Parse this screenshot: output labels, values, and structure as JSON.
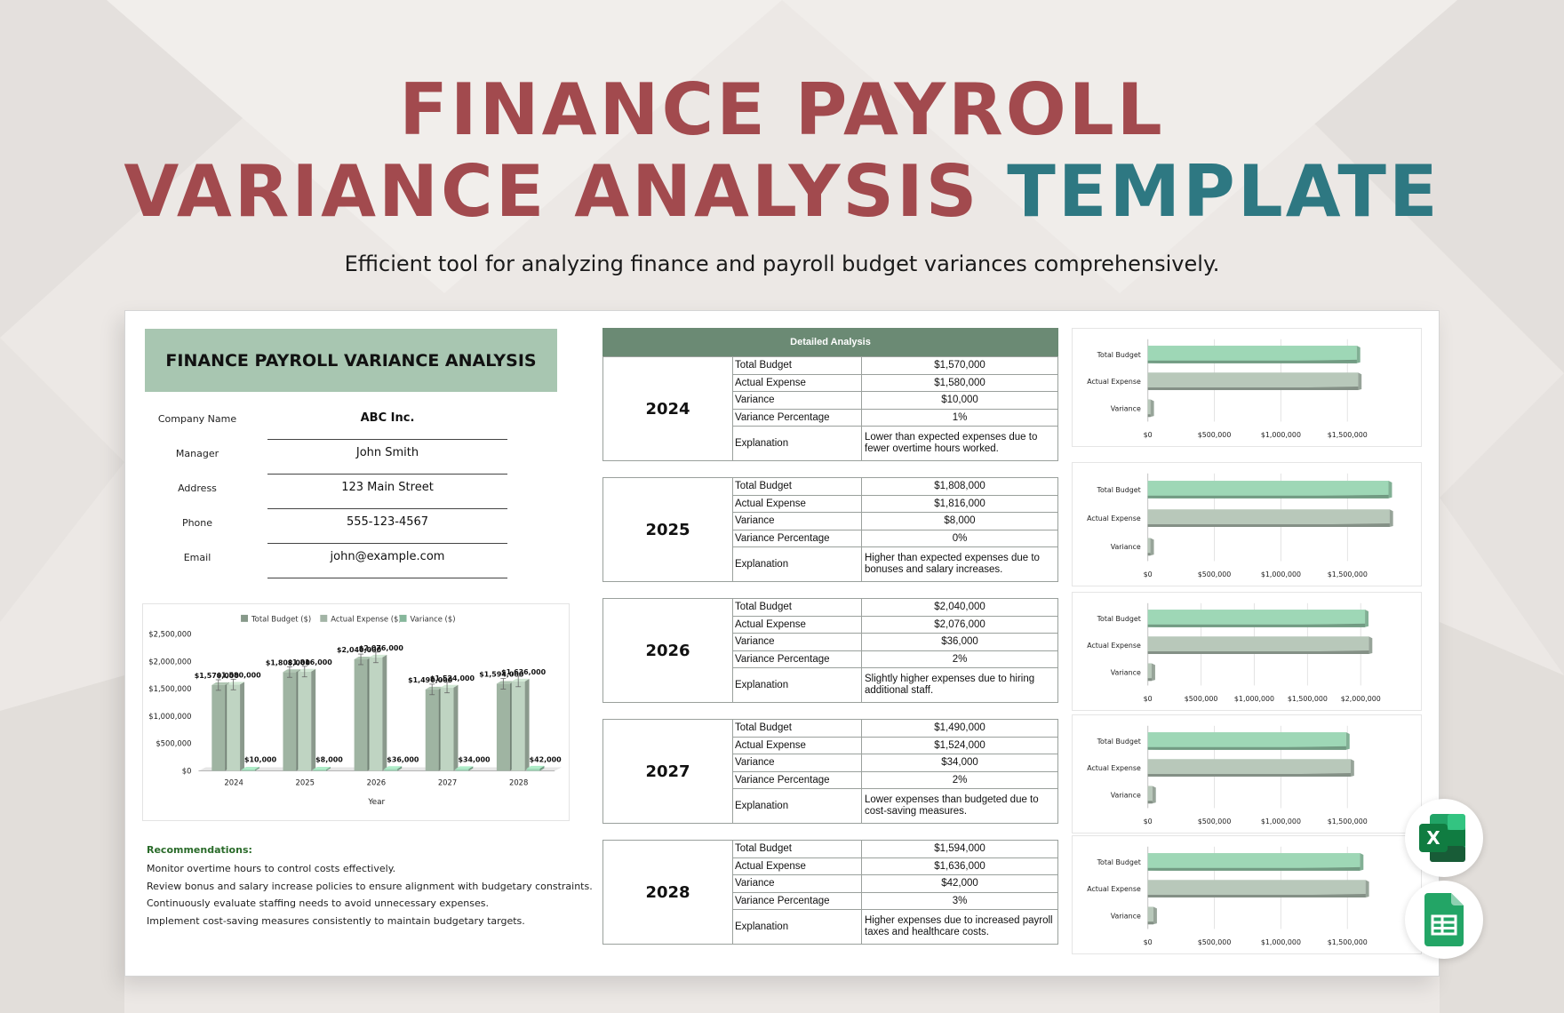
{
  "header": {
    "title_line1": "FINANCE PAYROLL",
    "title_line2a": "VARIANCE ANALYSIS",
    "title_line2b": "TEMPLATE",
    "subtitle": "Efficient tool for analyzing finance and payroll budget variances comprehensively."
  },
  "sheet": {
    "panel_title": "FINANCE PAYROLL VARIANCE ANALYSIS",
    "company_info": [
      {
        "label": "Company Name",
        "value": "ABC Inc."
      },
      {
        "label": "Manager",
        "value": "John Smith"
      },
      {
        "label": "Address",
        "value": "123 Main Street"
      },
      {
        "label": "Phone",
        "value": "555-123-4567"
      },
      {
        "label": "Email",
        "value": "john@example.com"
      }
    ],
    "recommendations": {
      "title": "Recommendations:",
      "items": [
        "Monitor overtime hours to control costs effectively.",
        "Review bonus and salary increase policies to ensure alignment with budgetary constraints.",
        "Continuously evaluate staffing needs to avoid unnecessary expenses.",
        "Implement cost-saving measures consistently to maintain budgetary targets."
      ]
    },
    "detailed_analysis": {
      "header": "Detailed Analysis",
      "metric_labels": [
        "Total Budget",
        "Actual Expense",
        "Variance",
        "Variance Percentage",
        "Explanation"
      ],
      "years": [
        {
          "year": "2024",
          "total_budget": "$1,570,000",
          "actual_expense": "$1,580,000",
          "variance": "$10,000",
          "variance_pct": "1%",
          "explanation": "Lower than expected expenses due to fewer overtime hours worked."
        },
        {
          "year": "2025",
          "total_budget": "$1,808,000",
          "actual_expense": "$1,816,000",
          "variance": "$8,000",
          "variance_pct": "0%",
          "explanation": "Higher than expected expenses due to bonuses and salary increases."
        },
        {
          "year": "2026",
          "total_budget": "$2,040,000",
          "actual_expense": "$2,076,000",
          "variance": "$36,000",
          "variance_pct": "2%",
          "explanation": "Slightly higher expenses due to hiring additional staff."
        },
        {
          "year": "2027",
          "total_budget": "$1,490,000",
          "actual_expense": "$1,524,000",
          "variance": "$34,000",
          "variance_pct": "2%",
          "explanation": "Lower expenses than budgeted due to cost-saving measures."
        },
        {
          "year": "2028",
          "total_budget": "$1,594,000",
          "actual_expense": "$1,636,000",
          "variance": "$42,000",
          "variance_pct": "3%",
          "explanation": "Higher expenses due to increased payroll taxes and healthcare costs."
        }
      ]
    }
  },
  "apps": {
    "excel_letter": "X"
  },
  "chart_data": [
    {
      "type": "bar",
      "categories": [
        "2024",
        "2025",
        "2026",
        "2027",
        "2028"
      ],
      "series": [
        {
          "name": "Total Budget ($)",
          "values": [
            1570000,
            1808000,
            2040000,
            1490000,
            1594000
          ],
          "color": "#9fb4a2"
        },
        {
          "name": "Actual Expense ($)",
          "values": [
            1580000,
            1816000,
            2076000,
            1524000,
            1636000
          ],
          "color": "#bfd4c2"
        },
        {
          "name": "Variance ($)",
          "values": [
            10000,
            8000,
            36000,
            34000,
            42000
          ],
          "color": "#9ed7b6"
        }
      ],
      "data_labels": [
        [
          "$1,570,000",
          "$1,808,000",
          "$2,040,000",
          "$1,490,000",
          "$1,594,000"
        ],
        [
          "$1,580,000",
          "$1,816,000",
          "$2,076,000",
          "$1,524,000",
          "$1,636,000"
        ],
        [
          "$10,000",
          "$8,000",
          "$36,000",
          "$34,000",
          "$42,000"
        ]
      ],
      "title": "",
      "xlabel": "Year",
      "ylabel": "",
      "ylim": [
        0,
        2500000
      ],
      "yticks": [
        0,
        500000,
        1000000,
        1500000,
        2000000,
        2500000
      ],
      "ytick_labels": [
        "$0",
        "$500,000",
        "$1,000,000",
        "$1,500,000",
        "$2,000,000",
        "$2,500,000"
      ],
      "legend": "top",
      "grid": false
    },
    {
      "type": "bar",
      "orientation": "horizontal",
      "categories": [
        "Total Budget",
        "Actual Expense",
        "Variance"
      ],
      "values": [
        1570000,
        1580000,
        10000
      ],
      "colors": [
        "#9ed7b6",
        "#b8c8ba",
        "#b8c8ba"
      ],
      "xlim": [
        0,
        2000000
      ],
      "xticks": [
        0,
        500000,
        1000000,
        1500000
      ],
      "xtick_labels": [
        "$0",
        "$500,000",
        "$1,000,000",
        "$1,500,000"
      ],
      "grid": true
    },
    {
      "type": "bar",
      "orientation": "horizontal",
      "categories": [
        "Total Budget",
        "Actual Expense",
        "Variance"
      ],
      "values": [
        1808000,
        1816000,
        8000
      ],
      "colors": [
        "#9ed7b6",
        "#b8c8ba",
        "#b8c8ba"
      ],
      "xlim": [
        0,
        2000000
      ],
      "xticks": [
        0,
        500000,
        1000000,
        1500000
      ],
      "xtick_labels": [
        "$0",
        "$500,000",
        "$1,000,000",
        "$1,500,000"
      ],
      "grid": true
    },
    {
      "type": "bar",
      "orientation": "horizontal",
      "categories": [
        "Total Budget",
        "Actual Expense",
        "Variance"
      ],
      "values": [
        2040000,
        2076000,
        36000
      ],
      "colors": [
        "#9ed7b6",
        "#b8c8ba",
        "#b8c8ba"
      ],
      "xlim": [
        0,
        2500000
      ],
      "xticks": [
        0,
        500000,
        1000000,
        1500000,
        2000000
      ],
      "xtick_labels": [
        "$0",
        "$500,000",
        "$1,000,000",
        "$1,500,000",
        "$2,000,000"
      ],
      "grid": true
    },
    {
      "type": "bar",
      "orientation": "horizontal",
      "categories": [
        "Total Budget",
        "Actual Expense",
        "Variance"
      ],
      "values": [
        1490000,
        1524000,
        34000
      ],
      "colors": [
        "#9ed7b6",
        "#b8c8ba",
        "#b8c8ba"
      ],
      "xlim": [
        0,
        2000000
      ],
      "xticks": [
        0,
        500000,
        1000000,
        1500000
      ],
      "xtick_labels": [
        "$0",
        "$500,000",
        "$1,000,000",
        "$1,500,000"
      ],
      "grid": true
    },
    {
      "type": "bar",
      "orientation": "horizontal",
      "categories": [
        "Total Budget",
        "Actual Expense",
        "Variance"
      ],
      "values": [
        1594000,
        1636000,
        42000
      ],
      "colors": [
        "#9ed7b6",
        "#b8c8ba",
        "#b8c8ba"
      ],
      "xlim": [
        0,
        2000000
      ],
      "xticks": [
        0,
        500000,
        1000000,
        1500000
      ],
      "xtick_labels": [
        "$0",
        "$500,000",
        "$1,000,000",
        "$1,500,000"
      ],
      "grid": true
    }
  ]
}
